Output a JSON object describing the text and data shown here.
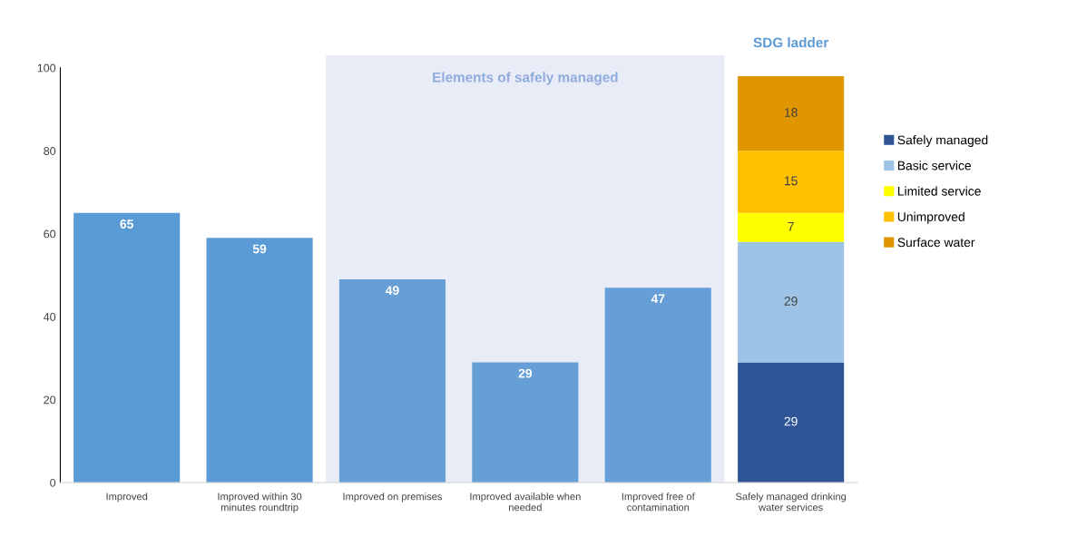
{
  "chart_data": {
    "type": "bar",
    "stacked": true,
    "data_labels": true,
    "categories": [
      "Improved",
      "Improved within 30 minutes roundtrip",
      "Improved on premises",
      "Improved available when needed",
      "Improved free of contamination",
      "Safely managed drinking water services"
    ],
    "series": [
      {
        "colors": [
          "#5b9bd5",
          "#5b9bd5",
          "#659fd6",
          "#659fd6",
          "#659fd6",
          null
        ],
        "values": [
          65,
          59,
          49,
          29,
          47,
          null
        ]
      },
      {
        "name": "Safely managed",
        "color": "#2f5597",
        "values": [
          null,
          null,
          null,
          null,
          null,
          29
        ]
      },
      {
        "name": "Basic service",
        "color": "#9dc3e6",
        "values": [
          null,
          null,
          null,
          null,
          null,
          29
        ]
      },
      {
        "name": "Limited service",
        "color": "#ffff00",
        "values": [
          null,
          null,
          null,
          null,
          null,
          7
        ]
      },
      {
        "name": "Unimproved",
        "color": "#ffc000",
        "values": [
          null,
          null,
          null,
          null,
          null,
          15
        ]
      },
      {
        "name": "Surface water",
        "color": "#e09600",
        "values": [
          null,
          null,
          null,
          null,
          null,
          18
        ]
      }
    ],
    "ylim": [
      0,
      100
    ],
    "yticks": [
      0,
      20,
      40,
      60,
      80,
      100
    ],
    "grid": false,
    "legend": "right",
    "bands": [
      {
        "axis": "x",
        "from": "Improved on premises",
        "to": "Improved free of contamination",
        "label": "Elements of safely managed",
        "color": "#e8ecf7"
      }
    ],
    "annotations": [
      "SDG ladder"
    ]
  }
}
